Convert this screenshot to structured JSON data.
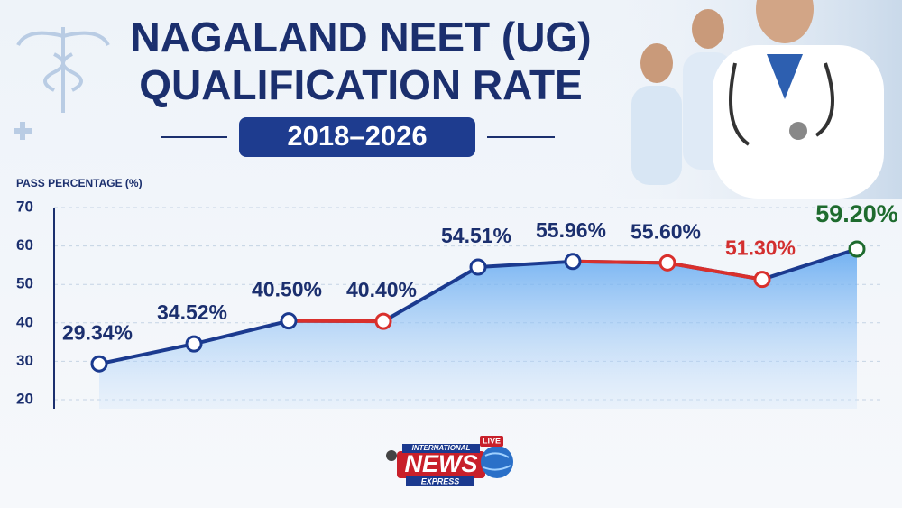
{
  "chart_data": {
    "type": "line",
    "title_lines": [
      "NAGALAND NEET (UG)",
      "QUALIFICATION RATE"
    ],
    "subtitle": "2018–2026",
    "y_label": "PASS PERCENTAGE (%)",
    "categories": [
      null,
      null,
      null,
      null,
      null,
      null,
      null,
      null,
      null
    ],
    "series": [
      {
        "name": null,
        "color": "#1b3a8f",
        "values": [
          29.34,
          34.52,
          40.5,
          40.4,
          54.51,
          55.96,
          55.6,
          51.3,
          59.2
        ],
        "value_labels": [
          "29.34%",
          "34.52%",
          "40.50%",
          "40.40%",
          "54.51%",
          "55.96%",
          "55.60%",
          "51.30%",
          "59.20%"
        ],
        "label_colors": [
          "#1b2f6e",
          "#1b2f6e",
          "#1b2f6e",
          "#1b2f6e",
          "#1b2f6e",
          "#1b2f6e",
          "#1b2f6e",
          "#d32f2f",
          "#1e6b2e"
        ]
      }
    ],
    "decline_color": "#d9302c",
    "ylim": [
      20,
      70
    ],
    "yticks": [
      20,
      30,
      40,
      50,
      60,
      70
    ],
    "grid": true
  },
  "logo": {
    "top": "INTERNATIONAL",
    "live": "LIVE",
    "main": "NEWS",
    "bottom": "EXPRESS"
  }
}
